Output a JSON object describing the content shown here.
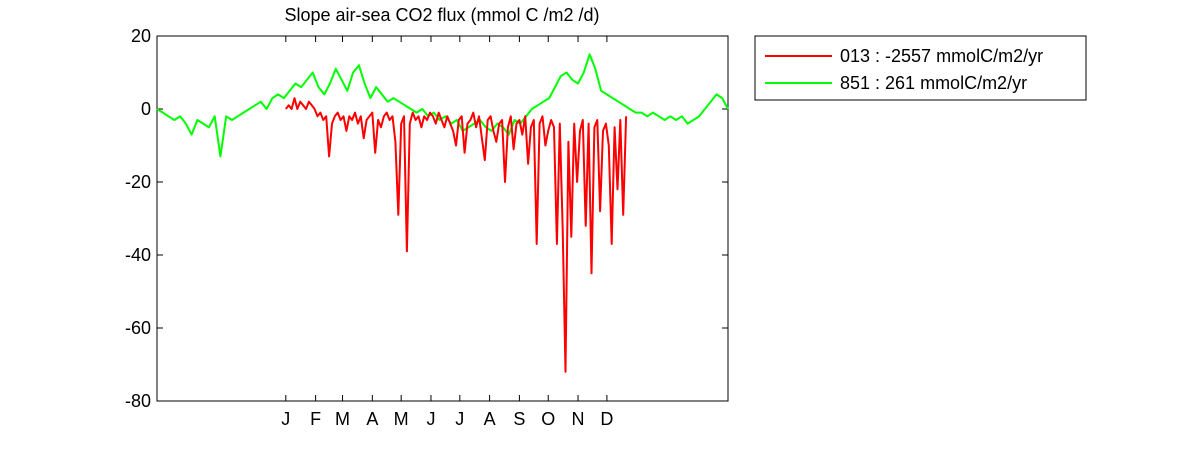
{
  "chart_data": {
    "type": "line",
    "title": "Slope  air-sea CO2 flux (mmol C /m2 /d)",
    "xlabel": "",
    "ylabel": "",
    "xlim": [
      -134,
      460
    ],
    "ylim": [
      -80,
      20
    ],
    "yticks": [
      20,
      0,
      -20,
      -40,
      -60,
      -80
    ],
    "xticks": [
      {
        "label": "J",
        "x": 0
      },
      {
        "label": "F",
        "x": 31
      },
      {
        "label": "M",
        "x": 59
      },
      {
        "label": "A",
        "x": 90
      },
      {
        "label": "M",
        "x": 120
      },
      {
        "label": "J",
        "x": 151
      },
      {
        "label": "J",
        "x": 181
      },
      {
        "label": "A",
        "x": 212
      },
      {
        "label": "S",
        "x": 243
      },
      {
        "label": "O",
        "x": 273
      },
      {
        "label": "N",
        "x": 304
      },
      {
        "label": "D",
        "x": 334
      }
    ],
    "legend_position": "outside-top-right",
    "grid": false,
    "series": [
      {
        "name": "013 : -2557 mmolC/m2/yr",
        "color": "#ff0000",
        "x": [
          0,
          3,
          6,
          9,
          12,
          15,
          18,
          21,
          24,
          27,
          30,
          33,
          36,
          39,
          42,
          45,
          48,
          51,
          54,
          57,
          60,
          63,
          66,
          69,
          72,
          75,
          78,
          81,
          84,
          87,
          90,
          93,
          96,
          99,
          102,
          105,
          108,
          111,
          114,
          117,
          120,
          123,
          126,
          129,
          132,
          135,
          138,
          141,
          144,
          147,
          150,
          153,
          156,
          159,
          162,
          165,
          168,
          171,
          174,
          177,
          180,
          183,
          186,
          189,
          192,
          195,
          198,
          201,
          204,
          207,
          210,
          213,
          216,
          219,
          222,
          225,
          228,
          231,
          234,
          237,
          240,
          243,
          246,
          249,
          252,
          255,
          258,
          261,
          264,
          267,
          270,
          273,
          276,
          279,
          282,
          285,
          288,
          291,
          294,
          297,
          300,
          303,
          306,
          309,
          312,
          315,
          318,
          321,
          324,
          327,
          330,
          333,
          336,
          339,
          342,
          345,
          348,
          351,
          354
        ],
        "y": [
          0,
          1,
          0,
          3,
          0,
          2,
          1,
          0,
          2,
          1,
          0,
          -2,
          -1,
          -3,
          -2,
          -13,
          -4,
          -2,
          -1,
          -3,
          -2,
          -6,
          -2,
          -3,
          -1,
          -4,
          -2,
          -8,
          -3,
          -2,
          -1,
          -12,
          -3,
          -5,
          -2,
          -1,
          -3,
          -2,
          -9,
          -29,
          -4,
          -2,
          -39,
          -4,
          -1,
          -3,
          -2,
          -5,
          -2,
          -3,
          -1,
          -2,
          -4,
          -1,
          -3,
          -5,
          -2,
          -4,
          -6,
          -10,
          -3,
          -2,
          -12,
          -4,
          -3,
          -1,
          -5,
          -2,
          -8,
          -14,
          -3,
          -2,
          -6,
          -9,
          -4,
          -3,
          -20,
          -5,
          -2,
          -11,
          -4,
          -3,
          -7,
          -2,
          -15,
          -5,
          -3,
          -37,
          -4,
          -2,
          -10,
          -6,
          -3,
          -5,
          -37,
          -4,
          -33,
          -72,
          -9,
          -35,
          -4,
          -20,
          -6,
          -3,
          -32,
          -4,
          -45,
          -5,
          -3,
          -28,
          -6,
          -4,
          -10,
          -37,
          -5,
          -22,
          -3,
          -29,
          -2
        ]
      },
      {
        "name": "851 : 261 mmolC/m2/yr",
        "color": "#00ff00",
        "x": [
          -134,
          -128,
          -122,
          -116,
          -110,
          -104,
          -98,
          -92,
          -86,
          -80,
          -74,
          -68,
          -62,
          -56,
          -50,
          -44,
          -38,
          -32,
          -26,
          -20,
          -14,
          -8,
          -2,
          4,
          10,
          16,
          22,
          28,
          34,
          40,
          46,
          52,
          58,
          64,
          70,
          76,
          82,
          88,
          94,
          100,
          106,
          112,
          118,
          124,
          130,
          136,
          142,
          148,
          154,
          160,
          166,
          172,
          178,
          184,
          190,
          196,
          202,
          208,
          214,
          220,
          226,
          232,
          238,
          244,
          250,
          256,
          262,
          268,
          274,
          280,
          286,
          292,
          298,
          304,
          310,
          316,
          322,
          328,
          334,
          340,
          346,
          352,
          358,
          364,
          370,
          376,
          382,
          388,
          394,
          400,
          406,
          412,
          418,
          424,
          430,
          436,
          442,
          448,
          454,
          460
        ],
        "y": [
          0,
          -1,
          -2,
          -3,
          -2,
          -4,
          -7,
          -3,
          -4,
          -5,
          -2,
          -13,
          -2,
          -3,
          -2,
          -1,
          0,
          1,
          2,
          0,
          3,
          4,
          3,
          5,
          7,
          6,
          8,
          10,
          6,
          4,
          7,
          11,
          8,
          5,
          10,
          12,
          7,
          3,
          6,
          4,
          2,
          3,
          2,
          1,
          0,
          -1,
          0,
          -2,
          -1,
          -3,
          -2,
          -4,
          -3,
          -6,
          -5,
          -4,
          -3,
          -5,
          -6,
          -4,
          -5,
          -7,
          -3,
          -4,
          -2,
          0,
          1,
          2,
          3,
          6,
          9,
          10,
          8,
          7,
          10,
          15,
          11,
          5,
          4,
          3,
          2,
          1,
          0,
          -1,
          -1,
          -2,
          -1,
          -2,
          -3,
          -2,
          -3,
          -2,
          -4,
          -3,
          -2,
          0,
          2,
          4,
          3,
          0
        ]
      }
    ]
  }
}
